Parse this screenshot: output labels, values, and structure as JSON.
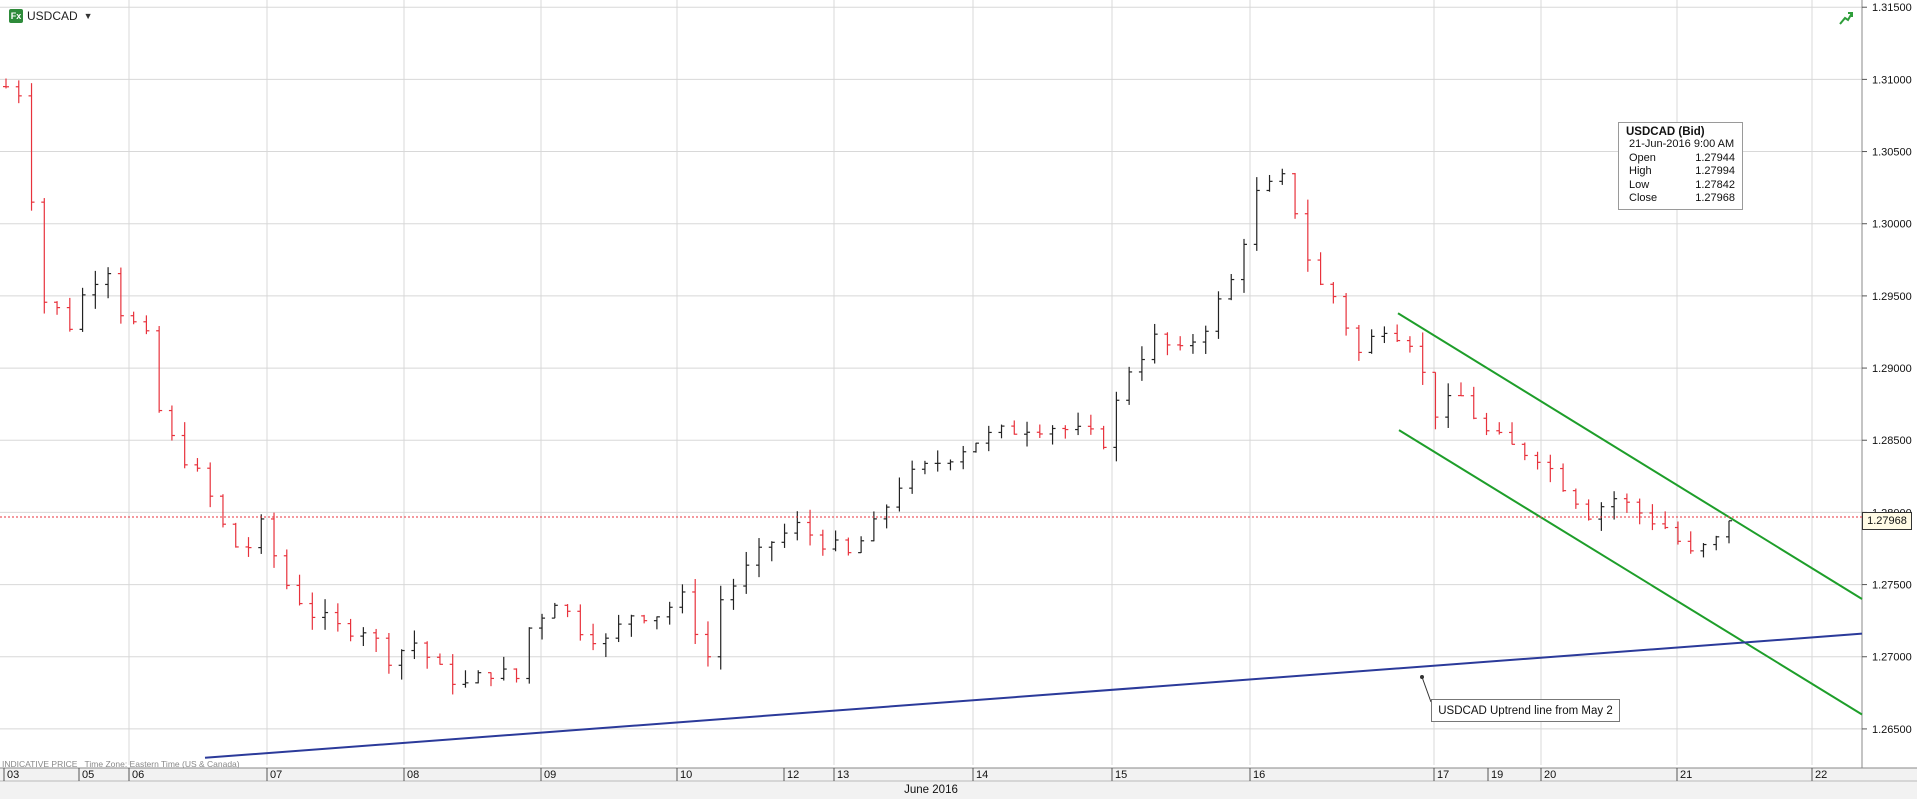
{
  "header": {
    "fx_badge": "Fx",
    "symbol": "USDCAD",
    "dropdown_icon": "caret-down-icon",
    "trend_icon": "chart-trend-icon"
  },
  "tooltip": {
    "title": "USDCAD (Bid)",
    "datetime": "21-Jun-2016 9:00 AM",
    "rows": [
      {
        "label": "Open",
        "value": "1.27944"
      },
      {
        "label": "High",
        "value": "1.27994"
      },
      {
        "label": "Low",
        "value": "1.27842"
      },
      {
        "label": "Close",
        "value": "1.27968"
      }
    ]
  },
  "annotation": {
    "text": "USDCAD Uptrend line from May 2"
  },
  "footnote": {
    "indicative": "INDICATIVE PRICE",
    "timezone": "Time Zone: Eastern Time (US & Canada)"
  },
  "current_price": "1.27968",
  "month_label": "June 2016",
  "colors": {
    "up_bar": "#222222",
    "down_bar": "#e8323c",
    "channel": "#1e9e2a",
    "uptrend": "#2b3a9a",
    "price_line": "#e8323c",
    "grid": "#d8d8d8"
  },
  "chart_data": {
    "type": "ohlc",
    "symbol": "USDCAD",
    "ylim": [
      1.2625,
      1.3155
    ],
    "y_ticks": [
      "1.26500",
      "1.27000",
      "1.27500",
      "1.28000",
      "1.28500",
      "1.29000",
      "1.29500",
      "1.30000",
      "1.30500",
      "1.31000",
      "1.31500"
    ],
    "x_ticks": [
      "03",
      "05",
      "06",
      "07",
      "08",
      "09",
      "10",
      "12",
      "13",
      "14",
      "15",
      "16",
      "17",
      "19",
      "20",
      "21",
      "22"
    ],
    "grid": true,
    "close_path": [
      [
        0,
        1.3095
      ],
      [
        1.5,
        1.309
      ],
      [
        2.5,
        1.295
      ],
      [
        4,
        1.294
      ],
      [
        5,
        1.293
      ],
      [
        6.5,
        1.296
      ],
      [
        8,
        1.297
      ],
      [
        9,
        1.294
      ],
      [
        11,
        1.292
      ],
      [
        12,
        1.287
      ],
      [
        13,
        1.285
      ],
      [
        15.5,
        1.282
      ],
      [
        17,
        1.279
      ],
      [
        18.5,
        1.277
      ],
      [
        20,
        1.279
      ],
      [
        22,
        1.275
      ],
      [
        24,
        1.273
      ],
      [
        26,
        1.272
      ],
      [
        28,
        1.272
      ],
      [
        30,
        1.27
      ],
      [
        32,
        1.271
      ],
      [
        34,
        1.269
      ],
      [
        36,
        1.268
      ],
      [
        38,
        1.269
      ],
      [
        40,
        1.2685
      ],
      [
        41,
        1.272
      ],
      [
        43,
        1.274
      ],
      [
        45,
        1.272
      ],
      [
        47,
        1.271
      ],
      [
        49,
        1.273
      ],
      [
        51,
        1.273
      ],
      [
        53,
        1.274
      ],
      [
        55,
        1.27
      ],
      [
        56,
        1.274
      ],
      [
        58,
        1.276
      ],
      [
        60,
        1.278
      ],
      [
        62,
        1.279
      ],
      [
        64,
        1.278
      ],
      [
        66,
        1.277
      ],
      [
        68,
        1.279
      ],
      [
        70,
        1.282
      ],
      [
        72,
        1.283
      ],
      [
        74,
        1.284
      ],
      [
        76,
        1.285
      ],
      [
        78,
        1.2855
      ],
      [
        80,
        1.286
      ],
      [
        82,
        1.286
      ],
      [
        84,
        1.2855
      ],
      [
        86,
        1.285
      ],
      [
        88,
        1.29
      ],
      [
        90,
        1.292
      ],
      [
        92,
        1.291
      ],
      [
        94,
        1.293
      ],
      [
        96,
        1.296
      ],
      [
        98,
        1.302
      ],
      [
        100,
        1.303
      ],
      [
        101,
        1.301
      ],
      [
        102.5,
        1.296
      ],
      [
        104,
        1.295
      ],
      [
        106,
        1.291
      ],
      [
        108,
        1.293
      ],
      [
        110,
        1.292
      ],
      [
        112,
        1.287
      ],
      [
        114,
        1.288
      ],
      [
        116,
        1.2855
      ],
      [
        118,
        1.2845
      ],
      [
        120,
        1.284
      ],
      [
        122,
        1.282
      ],
      [
        124,
        1.28
      ],
      [
        126,
        1.281
      ],
      [
        128,
        1.28
      ],
      [
        130,
        1.279
      ],
      [
        132,
        1.277
      ],
      [
        134,
        1.278
      ],
      [
        135,
        1.27968
      ]
    ],
    "channel_upper": {
      "from": [
        1.29388,
        1.2938
      ],
      "to": [
        1.3145,
        1.274
      ]
    },
    "channel_lower": {
      "from": [
        1.2931,
        1.2857
      ],
      "to": [
        1.3145,
        1.266
      ]
    },
    "uptrend_line": {
      "from": [
        1.263,
        1.263
      ],
      "to": [
        1.3145,
        1.2716
      ]
    }
  }
}
